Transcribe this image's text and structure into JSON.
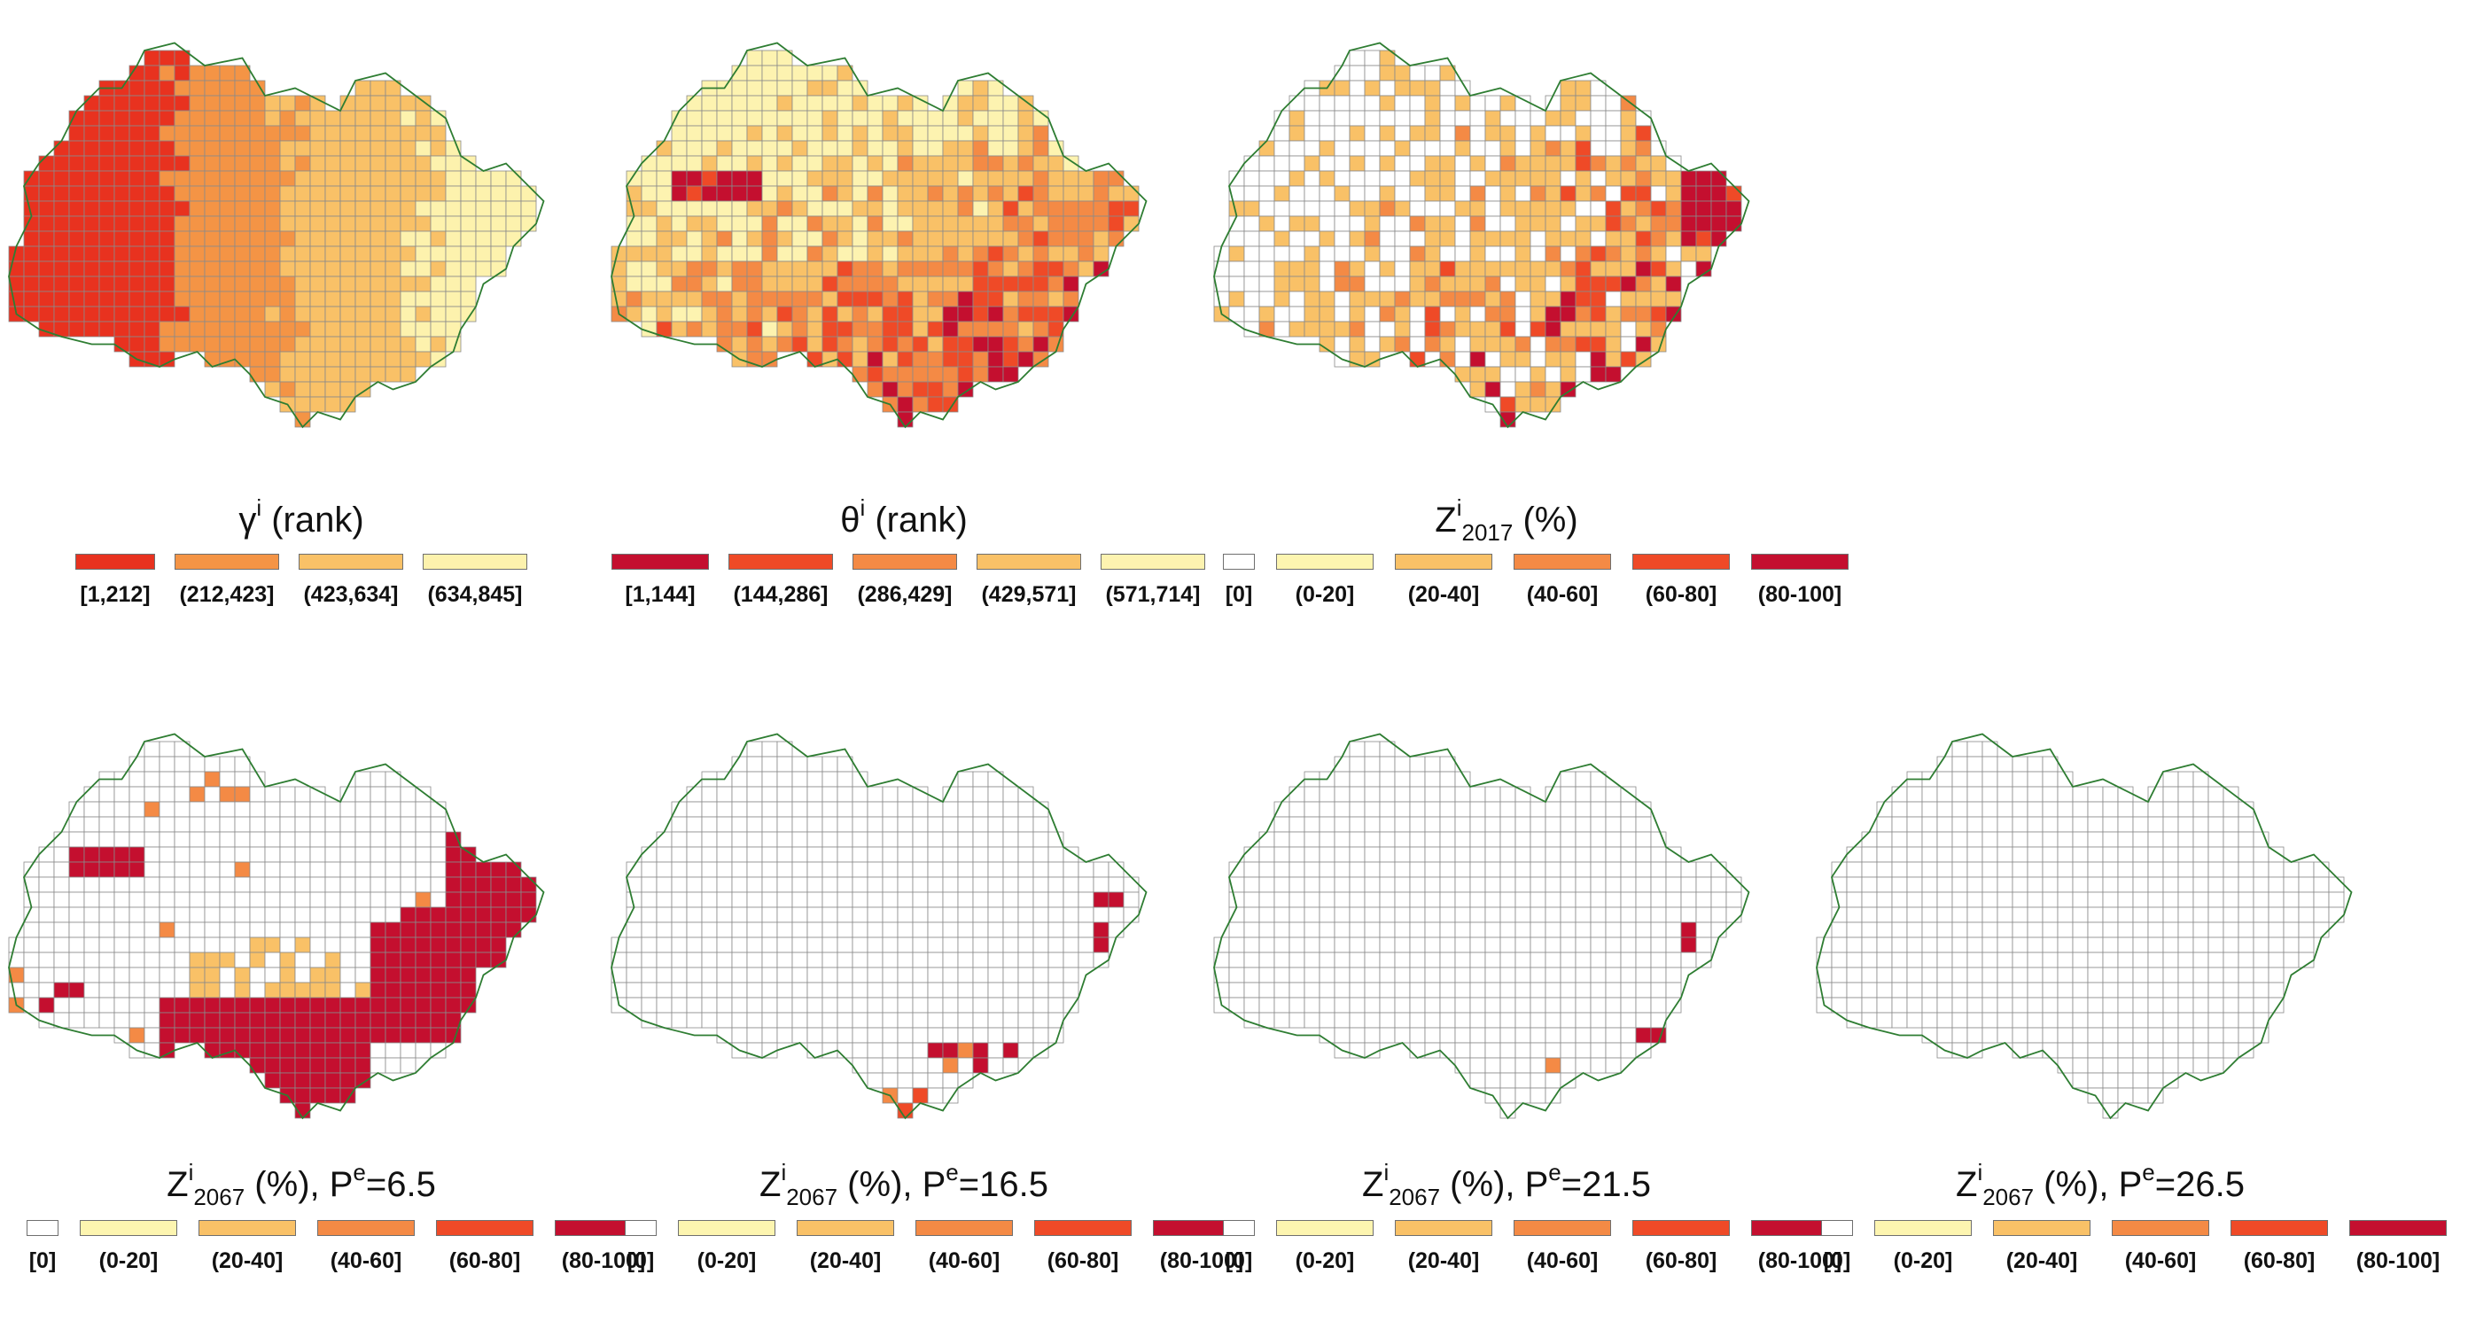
{
  "panels": [
    {
      "id": "gamma",
      "title": {
        "sym": "γ",
        "sup": "i",
        "sub": "",
        "suffix": " (rank)"
      },
      "map": "gamma",
      "legend": [
        {
          "label": "[1,212]",
          "color": "#e8321f"
        },
        {
          "label": "(212,423]",
          "color": "#f49445"
        },
        {
          "label": "(423,634]",
          "color": "#f9c167"
        },
        {
          "label": "(634,845]",
          "color": "#fdf2ad"
        }
      ]
    },
    {
      "id": "theta",
      "title": {
        "sym": "θ",
        "sup": "i",
        "sub": "",
        "suffix": " (rank)"
      },
      "map": "theta",
      "legend": [
        {
          "label": "[1,144]",
          "color": "#c40f2f"
        },
        {
          "label": "(144,286]",
          "color": "#ef4a27"
        },
        {
          "label": "(286,429]",
          "color": "#f48a45"
        },
        {
          "label": "(429,571]",
          "color": "#f9c167"
        },
        {
          "label": "(571,714]",
          "color": "#fdf3b0"
        }
      ]
    },
    {
      "id": "z2017",
      "title": {
        "sym": "Z",
        "sup": "i",
        "sub": "2017",
        "suffix": " (%)"
      },
      "map": "z2017",
      "legend": [
        {
          "label": "[0]",
          "color": "#ffffff"
        },
        {
          "label": "(0-20]",
          "color": "#fdf5b0"
        },
        {
          "label": "(20-40]",
          "color": "#f9c167"
        },
        {
          "label": "(40-60]",
          "color": "#f48a45"
        },
        {
          "label": "(60-80]",
          "color": "#ef4a27"
        },
        {
          "label": "(80-100]",
          "color": "#c40f2f"
        }
      ]
    },
    {
      "id": "z2067a",
      "title": {
        "sym": "Z",
        "sup": "i",
        "sub": "2067",
        "suffix": " (%), P",
        "sup2": "e",
        "tail": "=6.5"
      },
      "map": "z2067a",
      "legend": [
        {
          "label": "[0]",
          "color": "#ffffff"
        },
        {
          "label": "(0-20]",
          "color": "#fdf5b0"
        },
        {
          "label": "(20-40]",
          "color": "#f9c167"
        },
        {
          "label": "(40-60]",
          "color": "#f48a45"
        },
        {
          "label": "(60-80]",
          "color": "#ef4a27"
        },
        {
          "label": "(80-100]",
          "color": "#c40f2f"
        }
      ]
    },
    {
      "id": "z2067b",
      "title": {
        "sym": "Z",
        "sup": "i",
        "sub": "2067",
        "suffix": " (%), P",
        "sup2": "e",
        "tail": "=16.5"
      },
      "map": "z2067b",
      "legend": [
        {
          "label": "[0]",
          "color": "#ffffff"
        },
        {
          "label": "(0-20]",
          "color": "#fdf5b0"
        },
        {
          "label": "(20-40]",
          "color": "#f9c167"
        },
        {
          "label": "(40-60]",
          "color": "#f48a45"
        },
        {
          "label": "(60-80]",
          "color": "#ef4a27"
        },
        {
          "label": "(80-100]",
          "color": "#c40f2f"
        }
      ]
    },
    {
      "id": "z2067c",
      "title": {
        "sym": "Z",
        "sup": "i",
        "sub": "2067",
        "suffix": " (%), P",
        "sup2": "e",
        "tail": "=21.5"
      },
      "map": "z2067c",
      "legend": [
        {
          "label": "[0]",
          "color": "#ffffff"
        },
        {
          "label": "(0-20]",
          "color": "#fdf5b0"
        },
        {
          "label": "(20-40]",
          "color": "#f9c167"
        },
        {
          "label": "(40-60]",
          "color": "#f48a45"
        },
        {
          "label": "(60-80]",
          "color": "#ef4a27"
        },
        {
          "label": "(80-100]",
          "color": "#c40f2f"
        }
      ]
    },
    {
      "id": "z2067d",
      "title": {
        "sym": "Z",
        "sup": "i",
        "sub": "2067",
        "suffix": " (%), P",
        "sup2": "e",
        "tail": "=26.5"
      },
      "map": "z2067d",
      "legend": [
        {
          "label": "[0]",
          "color": "#ffffff"
        },
        {
          "label": "(0-20]",
          "color": "#fdf5b0"
        },
        {
          "label": "(20-40]",
          "color": "#f9c167"
        },
        {
          "label": "(40-60]",
          "color": "#f48a45"
        },
        {
          "label": "(60-80]",
          "color": "#ef4a27"
        },
        {
          "label": "(80-100]",
          "color": "#c40f2f"
        }
      ]
    }
  ],
  "colors": {
    "grid_line": "#8a8a8a",
    "boundary": "#2e7d32"
  }
}
